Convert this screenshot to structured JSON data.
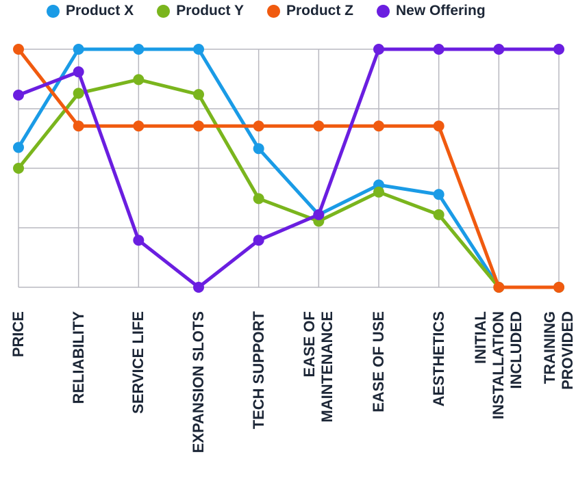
{
  "chart_data": {
    "type": "line",
    "categories": [
      "PRICE",
      "RELIABILITY",
      "SERVICE LIFE",
      "EXPANSION SLOTS",
      "TECH SUPPORT",
      "EASE OF\nMAINTENANCE",
      "EASE OF USE",
      "AESTHETICS",
      "INITIAL\nINSTALLATION\nINCLUDED",
      "TRAINING PROVIDED"
    ],
    "series": [
      {
        "name": "Product X",
        "color": "#1a9be6",
        "values": [
          2.35,
          4,
          4,
          4,
          2.33,
          1.22,
          1.72,
          1.56,
          0,
          0
        ]
      },
      {
        "name": "Product Y",
        "color": "#7ab51d",
        "values": [
          2,
          3.26,
          3.49,
          3.24,
          1.49,
          1.11,
          1.6,
          1.22,
          0,
          0
        ]
      },
      {
        "name": "Product Z",
        "color": "#f05a0f",
        "values": [
          4,
          2.71,
          2.71,
          2.71,
          2.71,
          2.71,
          2.71,
          2.71,
          0,
          0
        ]
      },
      {
        "name": "New Offering",
        "color": "#6a1ee0",
        "values": [
          3.23,
          3.62,
          0.79,
          0,
          0.79,
          1.22,
          4,
          4,
          4,
          4
        ]
      }
    ],
    "ylim": [
      0,
      4
    ],
    "yticks": [
      0,
      1,
      2,
      3,
      4
    ],
    "grid": true
  }
}
